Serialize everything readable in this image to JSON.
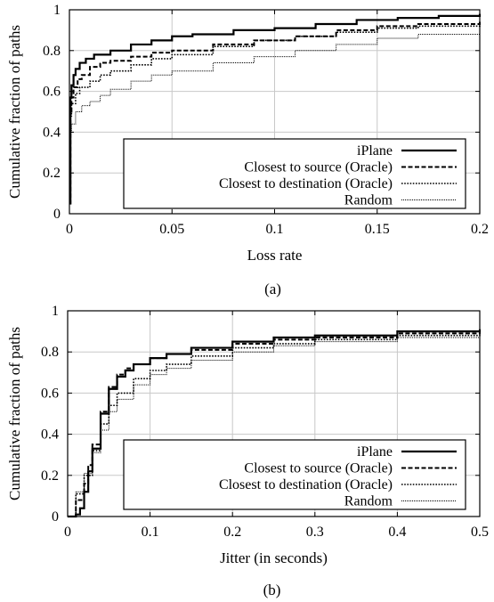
{
  "chart_data": [
    {
      "type": "line",
      "caption": "(a)",
      "xlabel": "Loss rate",
      "ylabel": "Cumulative fraction of paths",
      "xlim": [
        0,
        0.2
      ],
      "ylim": [
        0,
        1
      ],
      "xticks": [
        "0",
        "0.05",
        "0.1",
        "0.15",
        "0.2"
      ],
      "yticks": [
        "0",
        "0.2",
        "0.4",
        "0.6",
        "0.8",
        "1"
      ],
      "grid": true,
      "legend_position": "bottom-right",
      "series": [
        {
          "name": "iPlane",
          "style": "solid",
          "x": [
            0,
            0.0005,
            0.001,
            0.002,
            0.003,
            0.005,
            0.008,
            0.012,
            0.02,
            0.03,
            0.04,
            0.05,
            0.06,
            0.08,
            0.1,
            0.12,
            0.14,
            0.16,
            0.18,
            0.2
          ],
          "y": [
            0.05,
            0.57,
            0.63,
            0.68,
            0.71,
            0.74,
            0.76,
            0.78,
            0.8,
            0.83,
            0.85,
            0.87,
            0.88,
            0.9,
            0.91,
            0.93,
            0.95,
            0.96,
            0.97,
            0.98
          ]
        },
        {
          "name": "Closest to source (Oracle)",
          "style": "dashed",
          "x": [
            0,
            0.0005,
            0.001,
            0.002,
            0.004,
            0.006,
            0.01,
            0.015,
            0.02,
            0.03,
            0.04,
            0.05,
            0.07,
            0.09,
            0.11,
            0.13,
            0.15,
            0.17,
            0.2
          ],
          "y": [
            0.05,
            0.5,
            0.57,
            0.62,
            0.66,
            0.68,
            0.72,
            0.74,
            0.75,
            0.77,
            0.79,
            0.8,
            0.83,
            0.85,
            0.87,
            0.9,
            0.92,
            0.93,
            0.95
          ]
        },
        {
          "name": "Closest to destination (Oracle)",
          "style": "dotted",
          "x": [
            0,
            0.0005,
            0.001,
            0.003,
            0.005,
            0.01,
            0.015,
            0.02,
            0.03,
            0.04,
            0.05,
            0.07,
            0.09,
            0.11,
            0.13,
            0.15,
            0.17,
            0.2
          ],
          "y": [
            0.05,
            0.48,
            0.54,
            0.59,
            0.62,
            0.65,
            0.68,
            0.7,
            0.73,
            0.76,
            0.78,
            0.82,
            0.85,
            0.87,
            0.89,
            0.91,
            0.92,
            0.94
          ]
        },
        {
          "name": "Random",
          "style": "thin",
          "x": [
            0,
            0.0005,
            0.001,
            0.003,
            0.006,
            0.01,
            0.015,
            0.02,
            0.03,
            0.04,
            0.05,
            0.07,
            0.09,
            0.11,
            0.13,
            0.15,
            0.17,
            0.2
          ],
          "y": [
            0.05,
            0.4,
            0.44,
            0.5,
            0.53,
            0.55,
            0.58,
            0.61,
            0.65,
            0.68,
            0.7,
            0.74,
            0.77,
            0.8,
            0.83,
            0.86,
            0.88,
            0.91
          ]
        }
      ]
    },
    {
      "type": "line",
      "caption": "(b)",
      "xlabel": "Jitter (in seconds)",
      "ylabel": "Cumulative fraction of paths",
      "xlim": [
        0,
        0.5
      ],
      "ylim": [
        0,
        1
      ],
      "xticks": [
        "0",
        "0.1",
        "0.2",
        "0.3",
        "0.4",
        "0.5"
      ],
      "yticks": [
        "0",
        "0.2",
        "0.4",
        "0.6",
        "0.8",
        "1"
      ],
      "grid": true,
      "legend_position": "bottom-right",
      "series": [
        {
          "name": "iPlane",
          "style": "solid",
          "x": [
            0,
            0.01,
            0.015,
            0.02,
            0.025,
            0.03,
            0.04,
            0.05,
            0.06,
            0.07,
            0.08,
            0.1,
            0.12,
            0.15,
            0.2,
            0.25,
            0.3,
            0.4,
            0.5
          ],
          "y": [
            0,
            0.01,
            0.04,
            0.12,
            0.22,
            0.33,
            0.5,
            0.62,
            0.68,
            0.71,
            0.74,
            0.77,
            0.79,
            0.82,
            0.85,
            0.87,
            0.88,
            0.9,
            0.91
          ]
        },
        {
          "name": "Closest to source (Oracle)",
          "style": "dashed",
          "x": [
            0,
            0.01,
            0.02,
            0.025,
            0.03,
            0.04,
            0.05,
            0.06,
            0.07,
            0.08,
            0.1,
            0.12,
            0.15,
            0.2,
            0.25,
            0.3,
            0.4,
            0.5
          ],
          "y": [
            0,
            0.08,
            0.16,
            0.25,
            0.35,
            0.51,
            0.63,
            0.69,
            0.72,
            0.74,
            0.77,
            0.79,
            0.81,
            0.84,
            0.86,
            0.87,
            0.89,
            0.9
          ]
        },
        {
          "name": "Closest to destination (Oracle)",
          "style": "dotted",
          "x": [
            0,
            0.01,
            0.02,
            0.03,
            0.04,
            0.05,
            0.06,
            0.08,
            0.1,
            0.12,
            0.15,
            0.2,
            0.25,
            0.3,
            0.4,
            0.5
          ],
          "y": [
            0,
            0.11,
            0.2,
            0.32,
            0.45,
            0.54,
            0.6,
            0.67,
            0.71,
            0.74,
            0.78,
            0.82,
            0.84,
            0.86,
            0.88,
            0.89
          ]
        },
        {
          "name": "Random",
          "style": "thin",
          "x": [
            0,
            0.01,
            0.02,
            0.03,
            0.04,
            0.05,
            0.06,
            0.08,
            0.1,
            0.12,
            0.15,
            0.2,
            0.25,
            0.3,
            0.4,
            0.5
          ],
          "y": [
            0,
            0.12,
            0.21,
            0.31,
            0.42,
            0.51,
            0.57,
            0.64,
            0.69,
            0.72,
            0.76,
            0.8,
            0.83,
            0.85,
            0.87,
            0.88
          ]
        }
      ]
    }
  ]
}
